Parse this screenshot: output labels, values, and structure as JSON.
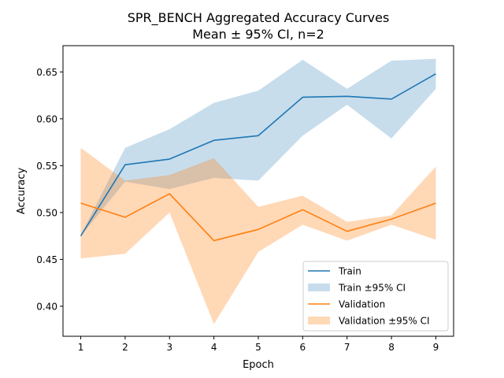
{
  "chart_data": {
    "type": "line",
    "title": "SPR_BENCH Aggregated Accuracy Curves",
    "subtitle": "Mean ± 95% CI, n=2",
    "xlabel": "Epoch",
    "ylabel": "Accuracy",
    "xlim": [
      0.6,
      9.4
    ],
    "ylim": [
      0.368,
      0.678
    ],
    "x": [
      1,
      2,
      3,
      4,
      5,
      6,
      7,
      8,
      9
    ],
    "xticks": [
      1,
      2,
      3,
      4,
      5,
      6,
      7,
      8,
      9
    ],
    "yticks": [
      0.4,
      0.45,
      0.5,
      0.55,
      0.6,
      0.65
    ],
    "ytick_labels": [
      "0.40",
      "0.45",
      "0.50",
      "0.55",
      "0.60",
      "0.65"
    ],
    "grid": false,
    "legend_position": "bottom-right",
    "series": [
      {
        "name": "Train",
        "ci_name": "Train ±95% CI",
        "color": "#1f77b4",
        "values": [
          0.475,
          0.551,
          0.557,
          0.577,
          0.582,
          0.623,
          0.624,
          0.621,
          0.648
        ],
        "ci_lower": [
          0.475,
          0.533,
          0.525,
          0.537,
          0.534,
          0.582,
          0.615,
          0.579,
          0.632
        ],
        "ci_upper": [
          0.476,
          0.569,
          0.589,
          0.617,
          0.63,
          0.663,
          0.632,
          0.662,
          0.664
        ]
      },
      {
        "name": "Validation",
        "ci_name": "Validation ±95% CI",
        "color": "#ff7f0e",
        "values": [
          0.51,
          0.495,
          0.52,
          0.47,
          0.482,
          0.503,
          0.48,
          0.493,
          0.51
        ],
        "ci_lower": [
          0.451,
          0.456,
          0.5,
          0.381,
          0.458,
          0.487,
          0.47,
          0.487,
          0.471
        ],
        "ci_upper": [
          0.569,
          0.534,
          0.54,
          0.558,
          0.506,
          0.518,
          0.49,
          0.497,
          0.549
        ]
      }
    ]
  }
}
